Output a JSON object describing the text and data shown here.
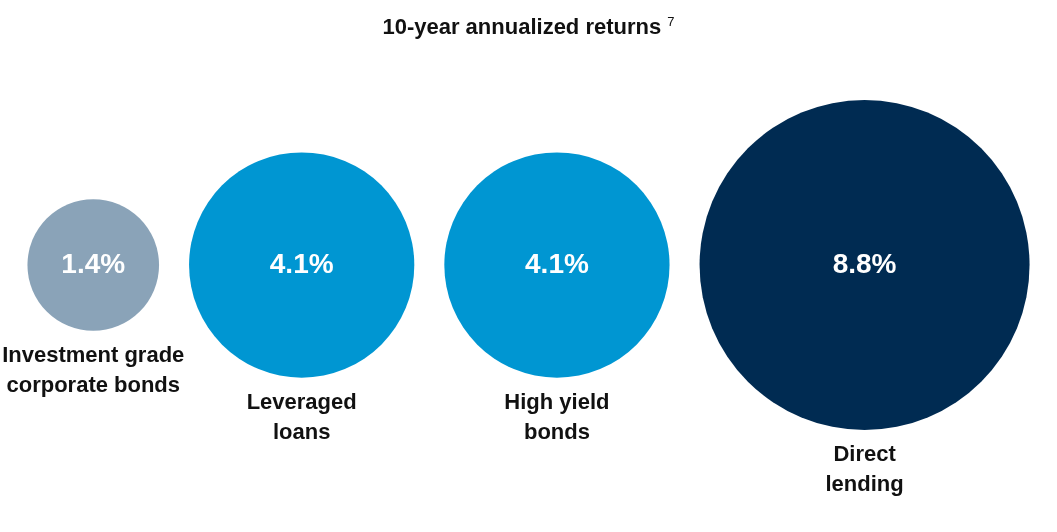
{
  "chart_data": {
    "type": "other",
    "title": "10-year annualized returns $^{7}$",
    "categories": [
      "Investment grade\ncorporate bonds",
      "Leveraged\nloans",
      "High yield\nbonds",
      "Direct\nlending"
    ],
    "values": [
      1.4,
      4.1,
      4.1,
      8.8
    ],
    "value_labels": [
      "1.4%",
      "4.1%",
      "4.1%",
      "8.8%"
    ],
    "colors": [
      "#8aa3b8",
      "#0096d2",
      "#0096d2",
      "#002b52"
    ]
  }
}
